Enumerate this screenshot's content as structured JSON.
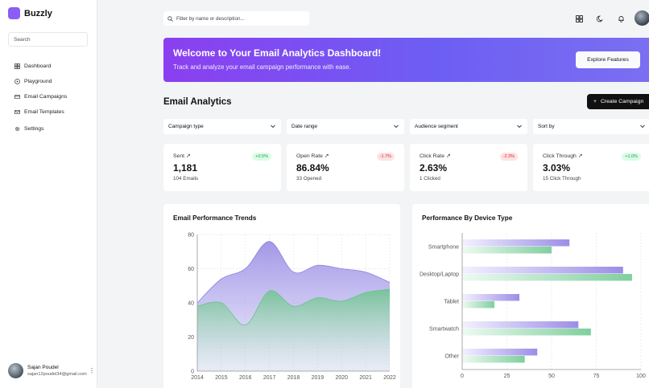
{
  "sidebar": {
    "brand": "Buzzly",
    "search_placeholder": "Search",
    "items": [
      {
        "label": "Dashboard",
        "icon": "dashboard-icon"
      },
      {
        "label": "Playground",
        "icon": "play-icon"
      },
      {
        "label": "Email Campaigns",
        "icon": "campaign-icon"
      },
      {
        "label": "Email Templates",
        "icon": "mail-icon"
      },
      {
        "label": "Settings",
        "icon": "gear-icon"
      }
    ],
    "user": {
      "name": "Sajan Poudel",
      "email": "sajan12poudel34@gmail.com"
    }
  },
  "topbar": {
    "search_placeholder": "Filter by name or description..."
  },
  "banner": {
    "title": "Welcome to Your Email Analytics Dashboard!",
    "subtitle": "Track and analyze your email campaign performance with ease.",
    "button": "Explore Features"
  },
  "section": {
    "title": "Email Analytics",
    "create_button": "Create Campaign"
  },
  "filters": [
    "Campaign type",
    "Date range",
    "Audience segment",
    "Sort by"
  ],
  "stats": [
    {
      "label": "Sent",
      "value": "1,181",
      "sub": "104 Emails",
      "change": "+0.5%",
      "trend": "up"
    },
    {
      "label": "Open Rate",
      "value": "86.84%",
      "sub": "33 Opened",
      "change": "-1.7%",
      "trend": "down"
    },
    {
      "label": "Click Rate",
      "value": "2.63%",
      "sub": "1 Clicked",
      "change": "-2.3%",
      "trend": "down"
    },
    {
      "label": "Click Through",
      "value": "3.03%",
      "sub": "15 Click Through",
      "change": "+1.0%",
      "trend": "up"
    }
  ],
  "colors": {
    "accent": "#8b5cf6",
    "purple_series": "#9b8ee6",
    "green_series": "#7fcf9e"
  },
  "chart_data": [
    {
      "type": "area",
      "title": "Email Performance Trends",
      "x": [
        2014,
        2015,
        2016,
        2017,
        2018,
        2019,
        2020,
        2021,
        2022
      ],
      "ylim": [
        0,
        80
      ],
      "yticks": [
        0,
        20,
        40,
        60,
        80
      ],
      "series": [
        {
          "name": "purple",
          "values": [
            40,
            54,
            60,
            76,
            58,
            62,
            60,
            58,
            52
          ]
        },
        {
          "name": "green",
          "values": [
            38,
            40,
            27,
            47,
            38,
            43,
            41,
            46,
            48
          ]
        }
      ]
    },
    {
      "type": "bar",
      "orientation": "horizontal",
      "title": "Performance By Device Type",
      "categories": [
        "Smartphone",
        "Desktop/Laptop",
        "Tablet",
        "Smartwatch",
        "Other"
      ],
      "xlim": [
        0,
        100
      ],
      "xticks": [
        0,
        25,
        50,
        75,
        100
      ],
      "series": [
        {
          "name": "purple",
          "values": [
            60,
            90,
            32,
            65,
            42
          ]
        },
        {
          "name": "green",
          "values": [
            50,
            95,
            18,
            72,
            35
          ]
        }
      ]
    }
  ]
}
